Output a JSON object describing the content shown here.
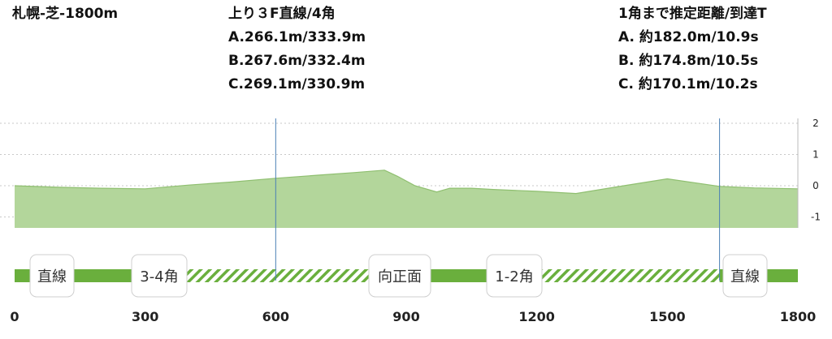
{
  "course": {
    "title": "札幌-芝-1800m"
  },
  "info_mid": {
    "header": "上り３F直線/4角",
    "lines": [
      "A.266.1m/333.9m",
      "B.267.6m/332.4m",
      "C.269.1m/330.9m"
    ]
  },
  "info_right": {
    "header": "1角まで推定距離/到達T",
    "lines": [
      "A. 約182.0m/10.9s",
      "B. 約174.8m/10.5s",
      "C. 約170.1m/10.2s"
    ]
  },
  "chart_data": {
    "type": "area",
    "xlim": [
      0,
      1800
    ],
    "x_ticks": [
      "0",
      "300",
      "600",
      "900",
      "1200",
      "1500",
      "1800"
    ],
    "y_ticks": [
      "2",
      "1",
      "0",
      "-1"
    ],
    "ylim": [
      -1.3,
      2.0
    ],
    "grid": true,
    "x": [
      0,
      100,
      200,
      300,
      400,
      500,
      600,
      700,
      780,
      850,
      880,
      920,
      970,
      1000,
      1050,
      1100,
      1200,
      1290,
      1400,
      1500,
      1620,
      1700,
      1800
    ],
    "y": [
      0.0,
      -0.05,
      -0.08,
      -0.1,
      0.02,
      0.12,
      0.24,
      0.34,
      0.42,
      0.5,
      0.3,
      0.0,
      -0.2,
      -0.08,
      -0.08,
      -0.12,
      -0.18,
      -0.25,
      0.0,
      0.22,
      -0.02,
      -0.07,
      -0.1
    ],
    "markers": [
      600,
      1620
    ],
    "colors": {
      "fill": "#b3d69b",
      "stroke": "#8fbf70",
      "straight": "#6aaf3d",
      "curve": "#6aaf3d",
      "marker": "#4a7fb5"
    },
    "segments": [
      {
        "type": "straight",
        "start": 0,
        "end": 280,
        "label": "直線"
      },
      {
        "type": "curve",
        "start": 280,
        "end": 850,
        "label": "3-4角"
      },
      {
        "type": "straight",
        "start": 850,
        "end": 1120,
        "label": "向正面"
      },
      {
        "type": "curve",
        "start": 1120,
        "end": 1620,
        "label": "1-2角"
      },
      {
        "type": "straight",
        "start": 1620,
        "end": 1800,
        "label": "直線"
      }
    ],
    "segment_label_x": [
      64,
      196,
      492,
      633,
      917
    ]
  }
}
